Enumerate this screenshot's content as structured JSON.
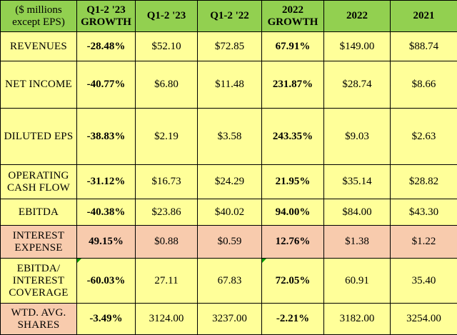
{
  "header": {
    "label": [
      "($ millions",
      "except EPS)"
    ],
    "columns": [
      [
        "Q1-2 '23",
        "GROWTH"
      ],
      [
        "Q1-2 '23"
      ],
      [
        "Q1-2 '22"
      ],
      [
        "2022",
        "GROWTH"
      ],
      [
        "2022"
      ],
      [
        "2021"
      ]
    ]
  },
  "rows": [
    {
      "label": [
        "REVENUES"
      ],
      "values": [
        "-28.48%",
        "$52.10",
        "$72.85",
        "67.91%",
        "$149.00",
        "$88.74"
      ]
    },
    {
      "label": [
        "NET INCOME"
      ],
      "values": [
        "-40.77%",
        "$6.80",
        "$11.48",
        "231.87%",
        "$28.74",
        "$8.66"
      ]
    },
    {
      "label": [
        "DILUTED EPS"
      ],
      "values": [
        "-38.83%",
        "$2.19",
        "$3.58",
        "243.35%",
        "$9.03",
        "$2.63"
      ]
    },
    {
      "label": [
        "OPERATING",
        "CASH FLOW"
      ],
      "values": [
        "-31.12%",
        "$16.73",
        "$24.29",
        "21.95%",
        "$35.14",
        "$28.82"
      ]
    },
    {
      "label": [
        "EBITDA"
      ],
      "values": [
        "-40.38%",
        "$23.86",
        "$40.02",
        "94.00%",
        "$84.00",
        "$43.30"
      ]
    },
    {
      "label": [
        "INTEREST",
        "EXPENSE"
      ],
      "values": [
        "49.15%",
        "$0.88",
        "$0.59",
        "12.76%",
        "$1.38",
        "$1.22"
      ]
    },
    {
      "label": [
        "EBITDA/",
        "INTEREST",
        "COVERAGE"
      ],
      "values": [
        "-60.03%",
        "27.11",
        "67.83",
        "72.05%",
        "60.91",
        "35.40"
      ]
    },
    {
      "label": [
        "WTD. AVG.",
        "SHARES"
      ],
      "values": [
        "-3.49%",
        "3124.00",
        "3237.00",
        "-2.21%",
        "3182.00",
        "3254.00"
      ]
    }
  ],
  "colors": {
    "header": "#92d050",
    "row": "#ffff99",
    "highlight_row": "#f8cbad",
    "marker": "#00a000"
  }
}
